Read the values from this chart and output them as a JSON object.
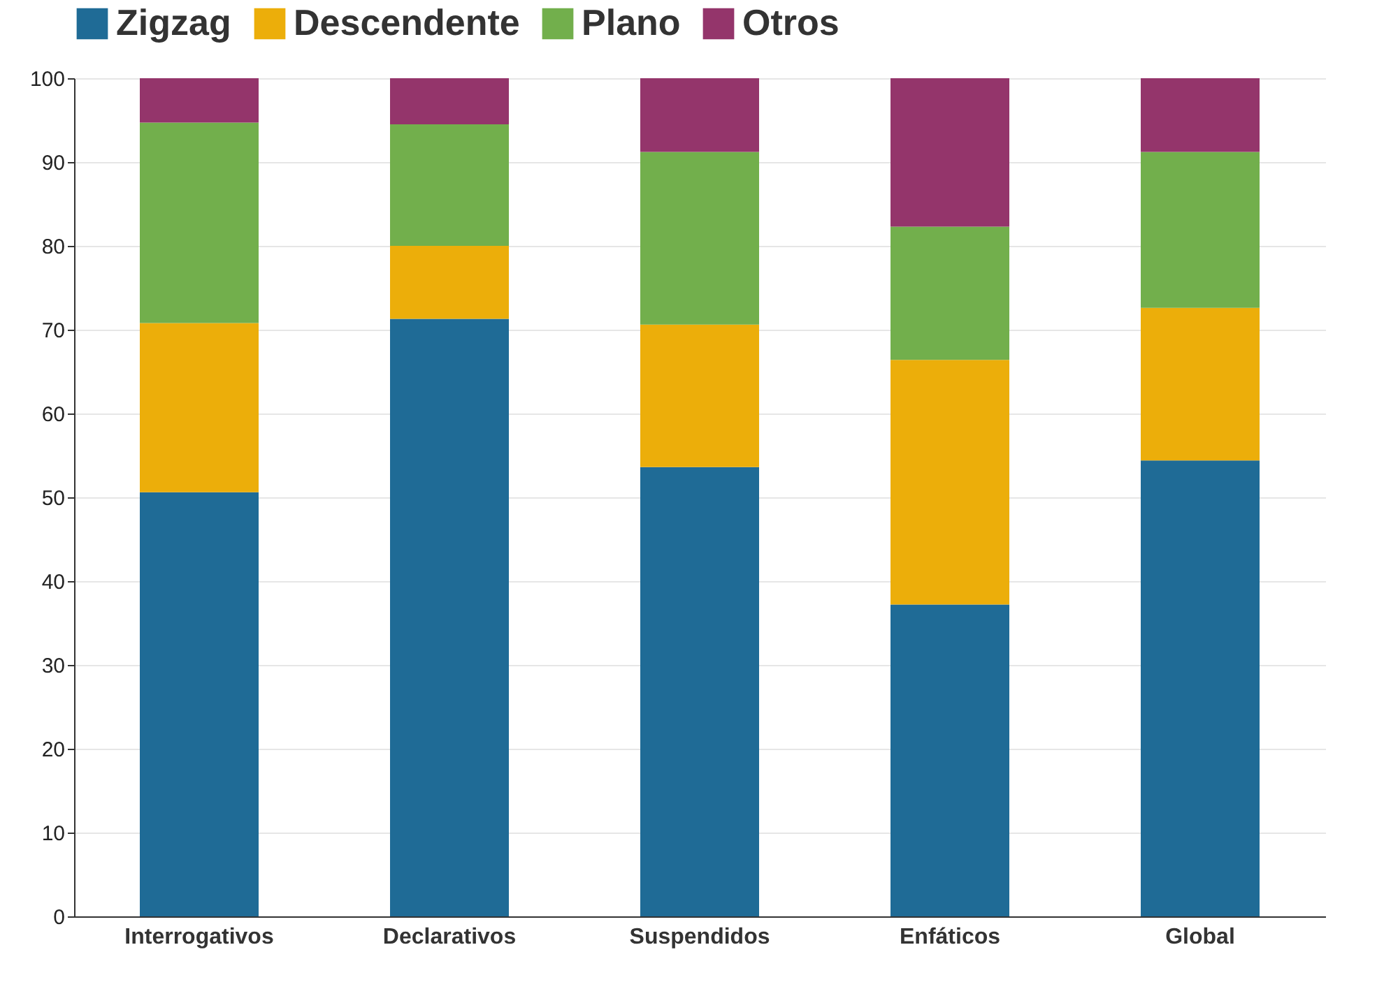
{
  "chart_data": {
    "type": "bar",
    "stacked": true,
    "categories": [
      "Interrogativos",
      "Declarativos",
      "Suspendidos",
      "Enfáticos",
      "Global"
    ],
    "series": [
      {
        "name": "Zigzag",
        "color": "#1f6b96",
        "values": [
          50.6,
          71.3,
          53.6,
          37.2,
          54.4
        ]
      },
      {
        "name": "Descendente",
        "color": "#ecae0a",
        "values": [
          20.2,
          8.7,
          17.0,
          29.2,
          18.2
        ]
      },
      {
        "name": "Plano",
        "color": "#72af4c",
        "values": [
          23.9,
          14.5,
          20.6,
          15.9,
          18.6
        ]
      },
      {
        "name": "Otros",
        "color": "#94356b",
        "values": [
          5.3,
          5.5,
          8.8,
          17.7,
          8.8
        ]
      }
    ],
    "ylim": [
      0,
      100
    ],
    "yticks": [
      0,
      10,
      20,
      30,
      40,
      50,
      60,
      70,
      80,
      90,
      100
    ],
    "grid": "y",
    "legend": "top left"
  }
}
